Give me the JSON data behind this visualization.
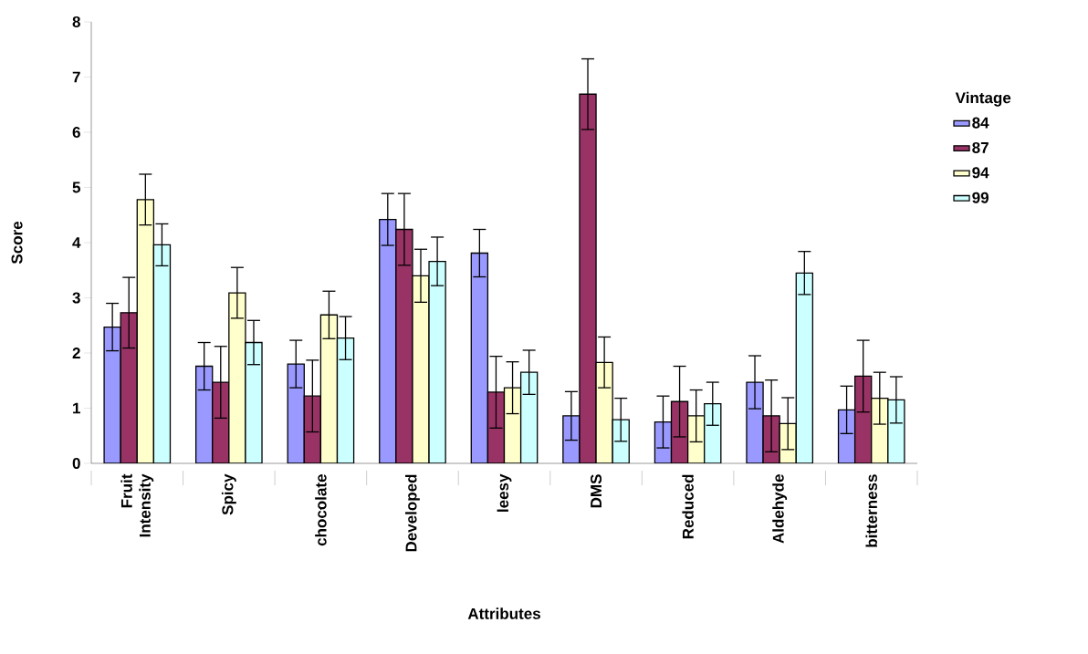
{
  "chart_data": {
    "type": "bar",
    "xlabel": "Attributes",
    "ylabel": "Score",
    "legend_title": "Vintage",
    "legend": "right",
    "categories": [
      "Fruit Intensity",
      "Spicy",
      "chocolate",
      "Developed",
      "leesy",
      "DMS",
      "Reduced",
      "Aldehyde",
      "bitterness"
    ],
    "ylim": [
      0,
      8
    ],
    "yticks": [
      0,
      1,
      2,
      3,
      4,
      5,
      6,
      7,
      8
    ],
    "series": [
      {
        "name": "84",
        "color": "#9999ff",
        "values": [
          2.47,
          1.76,
          1.8,
          4.42,
          3.81,
          0.86,
          0.75,
          1.47,
          0.97
        ],
        "errors": [
          0.43,
          0.43,
          0.43,
          0.47,
          0.43,
          0.44,
          0.47,
          0.48,
          0.43
        ]
      },
      {
        "name": "87",
        "color": "#993366",
        "values": [
          2.73,
          1.47,
          1.22,
          4.24,
          1.29,
          6.69,
          1.12,
          0.86,
          1.58
        ],
        "errors": [
          0.64,
          0.65,
          0.65,
          0.65,
          0.65,
          0.64,
          0.64,
          0.65,
          0.65
        ]
      },
      {
        "name": "94",
        "color": "#ffffcc",
        "values": [
          4.78,
          3.09,
          2.69,
          3.4,
          1.37,
          1.83,
          0.86,
          0.72,
          1.18
        ],
        "errors": [
          0.46,
          0.46,
          0.43,
          0.48,
          0.47,
          0.46,
          0.47,
          0.47,
          0.47
        ]
      },
      {
        "name": "99",
        "color": "#ccffff",
        "values": [
          3.96,
          2.19,
          2.27,
          3.66,
          1.65,
          0.79,
          1.08,
          3.45,
          1.15
        ],
        "errors": [
          0.38,
          0.4,
          0.39,
          0.44,
          0.4,
          0.39,
          0.39,
          0.39,
          0.42
        ]
      }
    ]
  }
}
